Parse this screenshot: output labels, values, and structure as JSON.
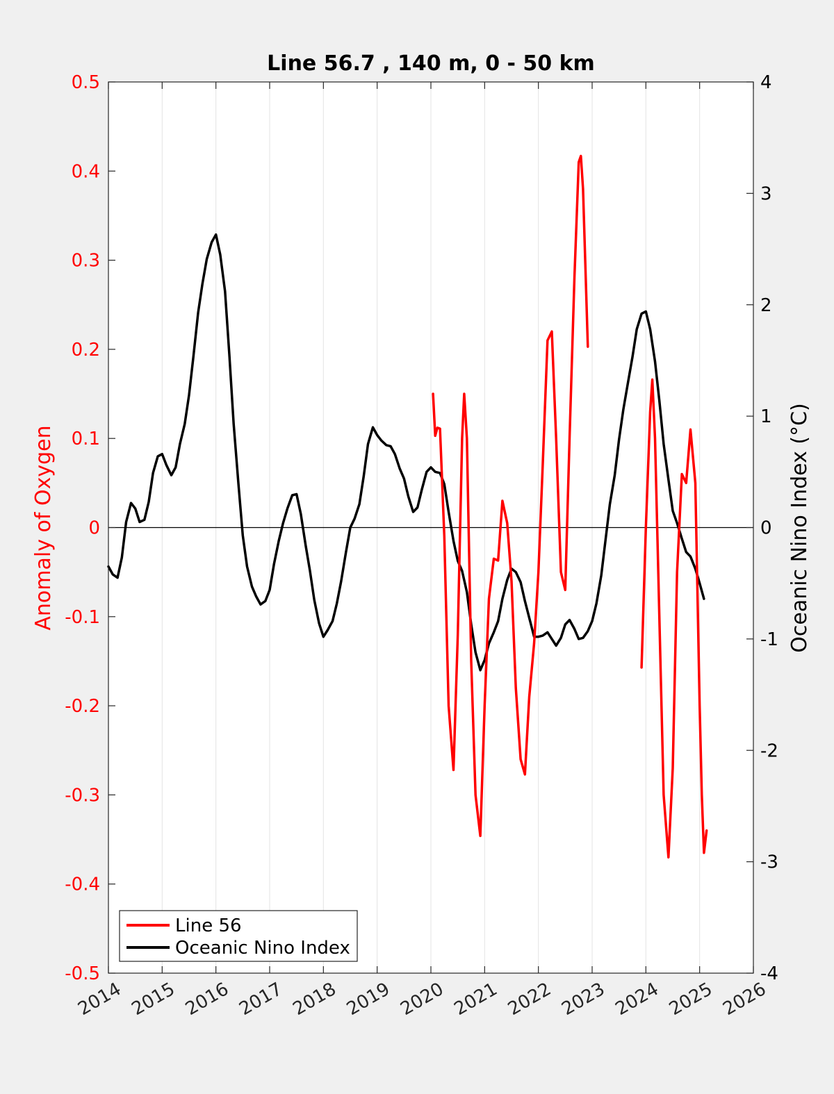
{
  "chart_data": {
    "type": "line",
    "title": "Line 56.7 , 140 m, 0 - 50 km",
    "xlabel": "",
    "ylabel_left": "Anomaly of Oxygen",
    "ylabel_right": "Oceanic Nino Index (°C)",
    "xlim": [
      2014,
      2026
    ],
    "ylim_left": [
      -0.5,
      0.5
    ],
    "ylim_right": [
      -4,
      4
    ],
    "x_ticks": [
      "2014",
      "2015",
      "2016",
      "2017",
      "2018",
      "2019",
      "2020",
      "2021",
      "2022",
      "2023",
      "2024",
      "2025",
      "2026"
    ],
    "y_ticks_left": [
      "0.5",
      "0.4",
      "0.3",
      "0.2",
      "0.1",
      "0",
      "-0.1",
      "-0.2",
      "-0.3",
      "-0.4",
      "-0.5"
    ],
    "y_ticks_right": [
      "4",
      "3",
      "2",
      "1",
      "0",
      "-1",
      "-2",
      "-3",
      "-4"
    ],
    "grid": "vertical",
    "legend_position": "bottom-left",
    "colors": {
      "line56": "#ff0000",
      "oni": "#000000",
      "left_axis": "#ff0000",
      "right_axis": "#000000"
    },
    "series": [
      {
        "name": "Line 56",
        "axis": "left",
        "segments": [
          [
            [
              2020.04,
              0.15
            ],
            [
              2020.08,
              0.103
            ],
            [
              2020.12,
              0.112
            ],
            [
              2020.17,
              0.111
            ],
            [
              2020.25,
              -0.01
            ],
            [
              2020.33,
              -0.2
            ],
            [
              2020.42,
              -0.272
            ],
            [
              2020.5,
              -0.12
            ],
            [
              2020.58,
              0.1
            ],
            [
              2020.62,
              0.15
            ],
            [
              2020.67,
              0.1
            ],
            [
              2020.75,
              -0.15
            ],
            [
              2020.83,
              -0.3
            ],
            [
              2020.92,
              -0.346
            ],
            [
              2021.0,
              -0.2
            ],
            [
              2021.08,
              -0.08
            ],
            [
              2021.17,
              -0.035
            ],
            [
              2021.25,
              -0.037
            ],
            [
              2021.33,
              0.03
            ],
            [
              2021.42,
              0.005
            ],
            [
              2021.5,
              -0.06
            ],
            [
              2021.58,
              -0.18
            ],
            [
              2021.67,
              -0.26
            ],
            [
              2021.75,
              -0.277
            ],
            [
              2021.83,
              -0.19
            ],
            [
              2021.92,
              -0.13
            ],
            [
              2022.0,
              -0.05
            ],
            [
              2022.08,
              0.07
            ],
            [
              2022.17,
              0.21
            ],
            [
              2022.25,
              0.22
            ],
            [
              2022.33,
              0.1
            ],
            [
              2022.42,
              -0.05
            ],
            [
              2022.5,
              -0.07
            ],
            [
              2022.58,
              0.1
            ],
            [
              2022.67,
              0.28
            ],
            [
              2022.75,
              0.41
            ],
            [
              2022.79,
              0.417
            ],
            [
              2022.83,
              0.38
            ],
            [
              2022.92,
              0.203
            ]
          ],
          [
            [
              2023.92,
              -0.157
            ],
            [
              2024.0,
              0.0
            ],
            [
              2024.08,
              0.13
            ],
            [
              2024.12,
              0.166
            ],
            [
              2024.17,
              0.1
            ],
            [
              2024.25,
              -0.1
            ],
            [
              2024.33,
              -0.3
            ],
            [
              2024.42,
              -0.37
            ],
            [
              2024.5,
              -0.27
            ],
            [
              2024.58,
              -0.05
            ],
            [
              2024.67,
              0.06
            ],
            [
              2024.75,
              0.05
            ],
            [
              2024.83,
              0.11
            ],
            [
              2024.92,
              0.05
            ],
            [
              2025.0,
              -0.2
            ],
            [
              2025.04,
              -0.3
            ],
            [
              2025.08,
              -0.365
            ],
            [
              2025.13,
              -0.34
            ]
          ]
        ]
      },
      {
        "name": "Oceanic Nino Index",
        "axis": "right",
        "points": [
          [
            2014.0,
            -0.35
          ],
          [
            2014.08,
            -0.42
          ],
          [
            2014.17,
            -0.45
          ],
          [
            2014.25,
            -0.27
          ],
          [
            2014.33,
            0.05
          ],
          [
            2014.42,
            0.22
          ],
          [
            2014.5,
            0.17
          ],
          [
            2014.58,
            0.05
          ],
          [
            2014.67,
            0.07
          ],
          [
            2014.75,
            0.23
          ],
          [
            2014.83,
            0.49
          ],
          [
            2014.92,
            0.64
          ],
          [
            2015.0,
            0.66
          ],
          [
            2015.08,
            0.56
          ],
          [
            2015.17,
            0.47
          ],
          [
            2015.25,
            0.54
          ],
          [
            2015.33,
            0.75
          ],
          [
            2015.42,
            0.93
          ],
          [
            2015.5,
            1.19
          ],
          [
            2015.58,
            1.53
          ],
          [
            2015.67,
            1.93
          ],
          [
            2015.75,
            2.19
          ],
          [
            2015.83,
            2.41
          ],
          [
            2015.92,
            2.56
          ],
          [
            2016.0,
            2.63
          ],
          [
            2016.08,
            2.45
          ],
          [
            2016.17,
            2.12
          ],
          [
            2016.25,
            1.55
          ],
          [
            2016.33,
            0.93
          ],
          [
            2016.42,
            0.39
          ],
          [
            2016.5,
            -0.07
          ],
          [
            2016.58,
            -0.35
          ],
          [
            2016.67,
            -0.53
          ],
          [
            2016.75,
            -0.62
          ],
          [
            2016.83,
            -0.69
          ],
          [
            2016.92,
            -0.66
          ],
          [
            2017.0,
            -0.56
          ],
          [
            2017.08,
            -0.33
          ],
          [
            2017.17,
            -0.12
          ],
          [
            2017.25,
            0.04
          ],
          [
            2017.33,
            0.17
          ],
          [
            2017.42,
            0.29
          ],
          [
            2017.5,
            0.3
          ],
          [
            2017.58,
            0.12
          ],
          [
            2017.67,
            -0.16
          ],
          [
            2017.75,
            -0.39
          ],
          [
            2017.83,
            -0.65
          ],
          [
            2017.92,
            -0.86
          ],
          [
            2018.0,
            -0.98
          ],
          [
            2018.08,
            -0.92
          ],
          [
            2018.17,
            -0.84
          ],
          [
            2018.25,
            -0.68
          ],
          [
            2018.33,
            -0.48
          ],
          [
            2018.42,
            -0.22
          ],
          [
            2018.5,
            0.0
          ],
          [
            2018.58,
            0.08
          ],
          [
            2018.67,
            0.21
          ],
          [
            2018.75,
            0.46
          ],
          [
            2018.83,
            0.75
          ],
          [
            2018.92,
            0.9
          ],
          [
            2019.0,
            0.83
          ],
          [
            2019.08,
            0.78
          ],
          [
            2019.17,
            0.74
          ],
          [
            2019.25,
            0.73
          ],
          [
            2019.33,
            0.66
          ],
          [
            2019.42,
            0.53
          ],
          [
            2019.5,
            0.44
          ],
          [
            2019.58,
            0.28
          ],
          [
            2019.67,
            0.14
          ],
          [
            2019.75,
            0.18
          ],
          [
            2019.83,
            0.34
          ],
          [
            2019.92,
            0.5
          ],
          [
            2020.0,
            0.54
          ],
          [
            2020.08,
            0.5
          ],
          [
            2020.17,
            0.49
          ],
          [
            2020.25,
            0.39
          ],
          [
            2020.33,
            0.14
          ],
          [
            2020.42,
            -0.12
          ],
          [
            2020.5,
            -0.3
          ],
          [
            2020.58,
            -0.39
          ],
          [
            2020.67,
            -0.58
          ],
          [
            2020.75,
            -0.87
          ],
          [
            2020.83,
            -1.12
          ],
          [
            2020.92,
            -1.28
          ],
          [
            2021.0,
            -1.19
          ],
          [
            2021.08,
            -1.04
          ],
          [
            2021.17,
            -0.94
          ],
          [
            2021.25,
            -0.84
          ],
          [
            2021.33,
            -0.64
          ],
          [
            2021.42,
            -0.47
          ],
          [
            2021.5,
            -0.37
          ],
          [
            2021.58,
            -0.4
          ],
          [
            2021.67,
            -0.49
          ],
          [
            2021.75,
            -0.66
          ],
          [
            2021.83,
            -0.81
          ],
          [
            2021.92,
            -0.98
          ],
          [
            2022.0,
            -0.98
          ],
          [
            2022.08,
            -0.97
          ],
          [
            2022.17,
            -0.94
          ],
          [
            2022.25,
            -1.0
          ],
          [
            2022.33,
            -1.06
          ],
          [
            2022.42,
            -0.99
          ],
          [
            2022.5,
            -0.87
          ],
          [
            2022.58,
            -0.83
          ],
          [
            2022.67,
            -0.91
          ],
          [
            2022.75,
            -1.0
          ],
          [
            2022.83,
            -0.99
          ],
          [
            2022.92,
            -0.93
          ],
          [
            2023.0,
            -0.84
          ],
          [
            2023.08,
            -0.68
          ],
          [
            2023.17,
            -0.43
          ],
          [
            2023.25,
            -0.11
          ],
          [
            2023.33,
            0.21
          ],
          [
            2023.42,
            0.47
          ],
          [
            2023.5,
            0.79
          ],
          [
            2023.58,
            1.06
          ],
          [
            2023.67,
            1.31
          ],
          [
            2023.75,
            1.53
          ],
          [
            2023.83,
            1.78
          ],
          [
            2023.92,
            1.92
          ],
          [
            2024.0,
            1.94
          ],
          [
            2024.08,
            1.78
          ],
          [
            2024.17,
            1.49
          ],
          [
            2024.25,
            1.14
          ],
          [
            2024.33,
            0.75
          ],
          [
            2024.42,
            0.43
          ],
          [
            2024.5,
            0.15
          ],
          [
            2024.58,
            0.04
          ],
          [
            2024.67,
            -0.1
          ],
          [
            2024.75,
            -0.22
          ],
          [
            2024.83,
            -0.26
          ],
          [
            2024.92,
            -0.37
          ],
          [
            2025.0,
            -0.5
          ],
          [
            2025.08,
            -0.64
          ]
        ]
      }
    ]
  }
}
